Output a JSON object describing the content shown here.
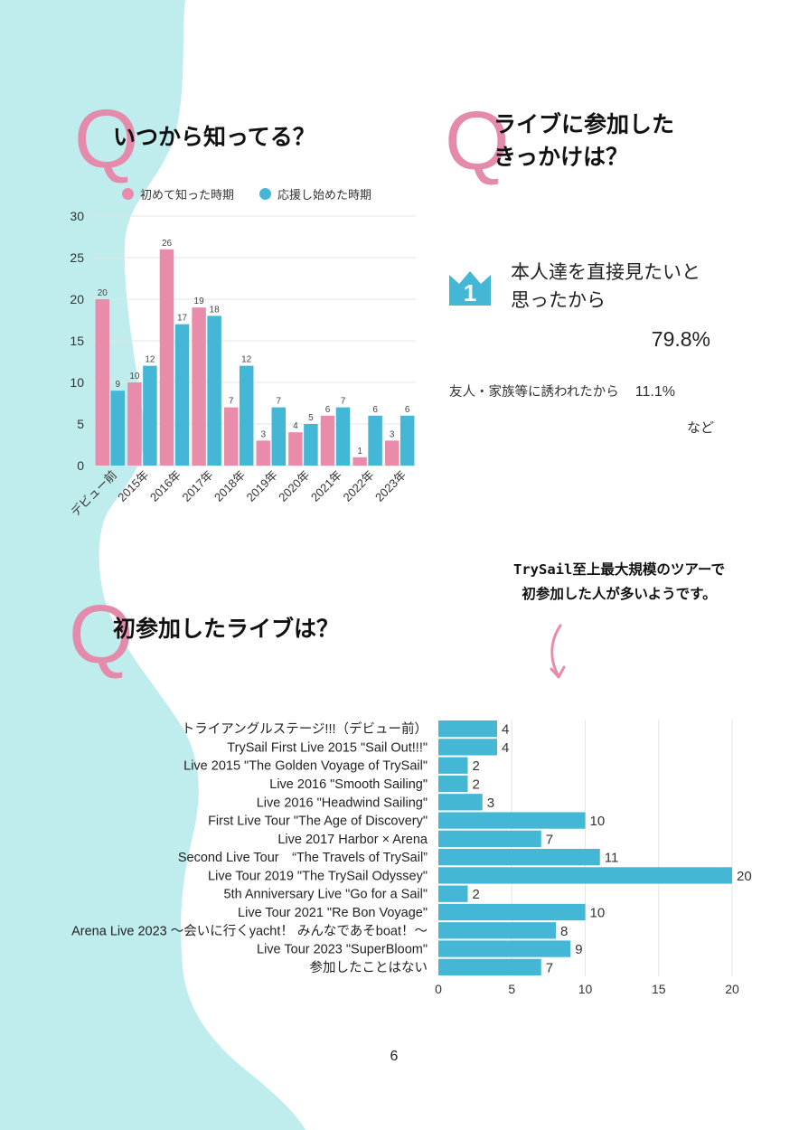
{
  "colors": {
    "background_wave": "#bfecec",
    "accent_pink": "#e88ca9",
    "accent_blue": "#44b7d6",
    "q_letter": "#e48bab",
    "gridline": "#e6e6e6"
  },
  "section1": {
    "q_letter": "Q",
    "title": "いつから知ってる？"
  },
  "section2": {
    "q_letter": "Q",
    "title_line1": "ライブに参加した",
    "title_line2": "きっかけは？",
    "rank_icon": "crown-icon",
    "rank_number": "1",
    "top_reason_line1": "本人達を直接見たいと",
    "top_reason_line2": "思ったから",
    "top_reason_percent": "79.8%",
    "second_reason": "友人・家族等に誘われたから",
    "second_reason_percent": "11.1%",
    "etc": "など"
  },
  "section3": {
    "q_letter": "Q",
    "title": "初参加したライブは？",
    "note_line1": "TrySail至上最大規模のツアーで",
    "note_line2": "初参加した人が多いようです。",
    "arrow_icon": "curved-arrow-down-icon"
  },
  "page_number": "6",
  "chart_data": [
    {
      "type": "bar",
      "orientation": "vertical",
      "title": "",
      "xlabel": "",
      "ylabel": "",
      "ylim": [
        0,
        30
      ],
      "yticks": [
        "0",
        "5",
        "10",
        "15",
        "20",
        "25",
        "30"
      ],
      "grid": true,
      "legend_position": "top",
      "categories": [
        "デビュー前",
        "2015年",
        "2016年",
        "2017年",
        "2018年",
        "2019年",
        "2020年",
        "2021年",
        "2022年",
        "2023年"
      ],
      "series": [
        {
          "name": "初めて知った時期",
          "color": "#e88ca9",
          "values": [
            20,
            10,
            26,
            19,
            7,
            3,
            4,
            6,
            1,
            3
          ]
        },
        {
          "name": "応援し始めた時期",
          "color": "#44b7d6",
          "values": [
            9,
            12,
            17,
            18,
            12,
            7,
            5,
            7,
            6,
            6
          ]
        }
      ]
    },
    {
      "type": "bar",
      "orientation": "horizontal",
      "title": "",
      "xlabel": "",
      "ylabel": "",
      "xlim": [
        0,
        22
      ],
      "xticks": [
        "0",
        "5",
        "10",
        "15",
        "20"
      ],
      "grid": true,
      "color": "#44b7d6",
      "categories": [
        "トライアングルステージ!!!（デビュー前）",
        "TrySail First Live 2015 \"Sail Out!!!\"",
        "Live 2015 \"The Golden Voyage of TrySail\"",
        "Live 2016 \"Smooth Sailing\"",
        "Live 2016 \"Headwind Sailing\"",
        "First Live Tour \"The Age of Discovery\"",
        "Live 2017 Harbor × Arena",
        "Second Live Tour　“The Travels of TrySail”",
        "Live Tour 2019 \"The TrySail Odyssey\"",
        "5th Anniversary Live \"Go for a Sail\"",
        "Live Tour 2021 \"Re Bon Voyage\"",
        "Arena Live 2023 ～会いに行くyacht！ みんなであそboat！～",
        "Live Tour 2023 \"SuperBloom\"",
        "参加したことはない"
      ],
      "values": [
        4,
        4,
        2,
        2,
        3,
        10,
        7,
        11,
        20,
        2,
        10,
        8,
        9,
        7
      ]
    }
  ]
}
